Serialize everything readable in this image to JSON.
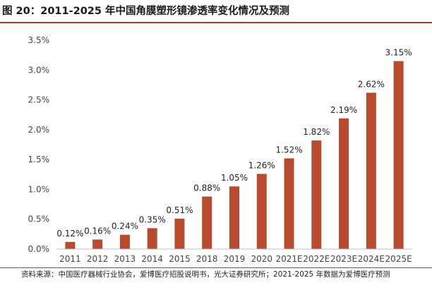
{
  "header": {
    "title": "图 20：2011-2025 年中国角膜塑形镜渗透率变化情况及预测"
  },
  "footer": {
    "source": "资料来源：中国医疗器械行业协会，爱博医疗招股说明书，光大证券研究所；2021-2025 年数据为爱博医疗预测"
  },
  "colors": {
    "bar": "#b84a2e",
    "accent_rule": "#b3402a",
    "axis": "#bfbfbf"
  },
  "chart_data": {
    "type": "bar",
    "title": "",
    "xlabel": "",
    "ylabel": "",
    "categories": [
      "2011",
      "2012",
      "2013",
      "2014",
      "2015",
      "2018",
      "2019",
      "2020",
      "2021E",
      "2022E",
      "2023E",
      "2024E",
      "2025E"
    ],
    "values": [
      0.12,
      0.16,
      0.24,
      0.35,
      0.51,
      0.88,
      1.05,
      1.26,
      1.52,
      1.82,
      2.19,
      2.62,
      3.15
    ],
    "value_labels": [
      "0.12%",
      "0.16%",
      "0.24%",
      "0.35%",
      "0.51%",
      "0.88%",
      "1.05%",
      "1.26%",
      "1.52%",
      "1.82%",
      "2.19%",
      "2.62%",
      "3.15%"
    ],
    "ylim": [
      0,
      3.5
    ],
    "yticks": [
      0,
      0.5,
      1.0,
      1.5,
      2.0,
      2.5,
      3.0,
      3.5
    ],
    "ytick_labels": [
      "0.0%",
      "0.5%",
      "1.0%",
      "1.5%",
      "2.0%",
      "2.5%",
      "3.0%",
      "3.5%"
    ],
    "grid": false,
    "legend": "none"
  }
}
